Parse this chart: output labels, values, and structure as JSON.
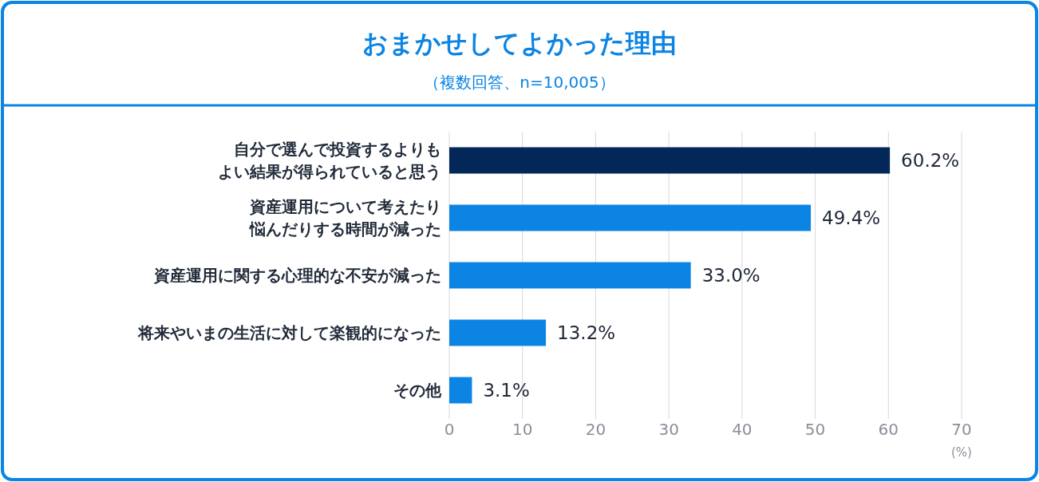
{
  "chart_data": {
    "type": "bar",
    "orientation": "horizontal",
    "title": "おまかせしてよかった理由",
    "subtitle": "（複数回答、n=10,005）",
    "xlabel": "(%)",
    "categories": [
      "自分で選んで投資するよりもよい結果が得られていると思う",
      "資産運用について考えたり悩んだりする時間が減った",
      "資産運用に関する心理的な不安が減った",
      "将来やいまの生活に対して楽観的になった",
      "その他"
    ],
    "values": [
      60.2,
      49.4,
      33.0,
      13.2,
      3.1
    ],
    "colors": [
      "#04275a",
      "#0b84e3",
      "#0b84e3",
      "#0b84e3",
      "#0b84e3"
    ],
    "value_labels": [
      "60.2%",
      "49.4%",
      "33.0%",
      "13.2%",
      "3.1%"
    ],
    "xlim": [
      0,
      70
    ],
    "xticks": [
      0,
      10,
      20,
      30,
      40,
      50,
      60,
      70
    ],
    "grid": "x"
  }
}
